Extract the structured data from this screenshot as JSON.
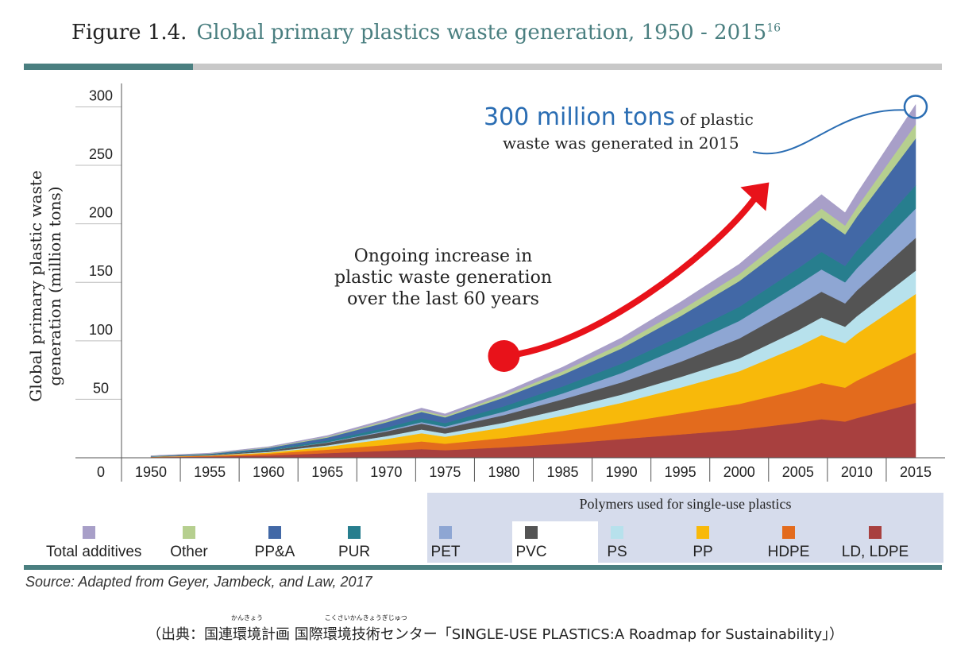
{
  "figure": {
    "label": "Figure  1.4.",
    "title": "Global primary plastics waste generation, 1950 - 2015",
    "superscript": "16",
    "accent_color": "#4a7f80"
  },
  "chart_data": {
    "type": "area",
    "stacked": true,
    "title": "Global primary plastics waste generation, 1950 - 2015",
    "ylabel_lines": [
      "Global primary plastic waste",
      "generation (million tons)"
    ],
    "xlabel": "",
    "ylim": [
      0,
      320
    ],
    "yticks": [
      0,
      50,
      100,
      150,
      200,
      250,
      300
    ],
    "xticks": [
      1950,
      1955,
      1960,
      1965,
      1970,
      1975,
      1980,
      1985,
      1990,
      1995,
      2000,
      2005,
      2010,
      2015
    ],
    "xlim": [
      1947.5,
      2017.5
    ],
    "x": [
      1950,
      1955,
      1960,
      1965,
      1970,
      1973,
      1975,
      1980,
      1985,
      1990,
      1995,
      2000,
      2005,
      2007,
      2009,
      2010,
      2015
    ],
    "series": [
      {
        "name": "LD, LDPE",
        "color": "#a8403f",
        "values": [
          0.5,
          1,
          2,
          4,
          6,
          7.5,
          6.5,
          9,
          12,
          16,
          20,
          24,
          30,
          33,
          31,
          34,
          47
        ]
      },
      {
        "name": "HDPE",
        "color": "#e36b1d",
        "values": [
          0.3,
          0.6,
          1.5,
          3,
          5,
          6.5,
          5.5,
          8,
          11,
          14,
          18,
          22,
          28,
          31,
          29,
          32,
          43
        ]
      },
      {
        "name": "PP",
        "color": "#f8b90a",
        "values": [
          0.1,
          0.3,
          1,
          2.5,
          5,
          7,
          6,
          9,
          13,
          17,
          22,
          28,
          37,
          41,
          38,
          40,
          50
        ]
      },
      {
        "name": "PS",
        "color": "#b7e1ec",
        "values": [
          0.1,
          0.2,
          0.6,
          1.2,
          2.5,
          3.2,
          2.8,
          4,
          5.5,
          7,
          9,
          11,
          14,
          15,
          14,
          15,
          20
        ]
      },
      {
        "name": "PVC",
        "color": "#545454",
        "values": [
          0.2,
          0.5,
          1.2,
          2.3,
          4,
          5,
          4.5,
          6.5,
          8.5,
          10.5,
          13,
          17,
          21,
          22,
          20,
          22,
          28
        ]
      },
      {
        "name": "PET",
        "color": "#8ea6d3",
        "values": [
          0,
          0,
          0.1,
          0.3,
          0.8,
          1.3,
          1.3,
          3,
          5,
          8,
          12,
          15,
          18,
          19,
          18,
          19,
          25
        ]
      },
      {
        "name": "PUR",
        "color": "#277e8e",
        "values": [
          0.1,
          0.3,
          0.8,
          1.5,
          2.5,
          3.2,
          3,
          4.5,
          6,
          8,
          10,
          12,
          14,
          15,
          14,
          15,
          20
        ]
      },
      {
        "name": "PP&A",
        "color": "#4268a6",
        "values": [
          0.2,
          0.5,
          1.3,
          2.5,
          4.5,
          5.5,
          5,
          7.5,
          10,
          13,
          17,
          22,
          27,
          29,
          27,
          29,
          40
        ]
      },
      {
        "name": "Other",
        "color": "#b6cf8f",
        "values": [
          0.1,
          0.3,
          0.5,
          0.8,
          1.2,
          1.4,
          1.3,
          2,
          3,
          4,
          5,
          6,
          8,
          8,
          7.5,
          8,
          12
        ]
      },
      {
        "name": "Total additives",
        "color": "#a89fc8",
        "values": [
          0.2,
          0.3,
          0.5,
          0.9,
          1.5,
          1.9,
          1.6,
          2.5,
          3.5,
          5,
          7,
          8.5,
          11,
          12,
          11,
          12,
          17
        ]
      }
    ],
    "annotations": {
      "arrow_text": [
        "Ongoing increase in",
        "plastic waste generation",
        "over the last 60 years"
      ],
      "highlight_big": "300 million tons",
      "highlight_rest": "of plastic",
      "highlight_line2": "waste was generated in 2015",
      "highlight_color": "#2a6db3",
      "arrow_color": "#e8121a",
      "arrow_from": {
        "x": 1980,
        "y": 87
      },
      "arrow_to": {
        "x": 2002,
        "y": 230
      },
      "callout_point": {
        "x": 2015,
        "y": 300
      }
    }
  },
  "legend": {
    "band_title": "Polymers used for single-use plastics",
    "items": [
      {
        "label": "Total additives",
        "color": "#a89fc8"
      },
      {
        "label": "Other",
        "color": "#b6cf8f"
      },
      {
        "label": "PP&A",
        "color": "#4268a6"
      },
      {
        "label": "PUR",
        "color": "#277e8e"
      },
      {
        "label": "PET",
        "color": "#8ea6d3"
      },
      {
        "label": "PVC",
        "color": "#545454"
      },
      {
        "label": "PS",
        "color": "#b7e1ec"
      },
      {
        "label": "PP",
        "color": "#f8b90a"
      },
      {
        "label": "HDPE",
        "color": "#e36b1d"
      },
      {
        "label": "LD, LDPE",
        "color": "#a8403f"
      }
    ]
  },
  "source": "Source:   Adapted from Geyer, Jambeck, and Law, 2017",
  "caption": {
    "open": "（出典：",
    "word1": "国連環境計画",
    "ruby1": "かんきょう",
    "space": " ",
    "word2": "国際環境技術センター",
    "ruby2": "こくさいかんきょうぎじゅつ",
    "close": "「SINGLE-USE PLASTICS:A Roadmap for Sustainability」）"
  }
}
